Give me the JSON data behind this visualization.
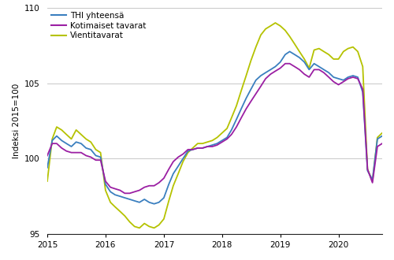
{
  "title": "",
  "ylabel": "Indeksi 2015=100",
  "ylim": [
    95,
    110
  ],
  "yticks": [
    95,
    100,
    105,
    110
  ],
  "colors": {
    "thi": "#3a7fbf",
    "kotimaiset": "#9b1fa3",
    "vientitavarat": "#b5c200"
  },
  "legend_labels": [
    "THI yhteensä",
    "Kotimaiset tavarat",
    "Vientitavarat"
  ],
  "thi": [
    99.4,
    101.2,
    101.5,
    101.2,
    101.0,
    100.8,
    101.1,
    101.0,
    100.7,
    100.6,
    100.2,
    100.1,
    98.3,
    97.8,
    97.6,
    97.5,
    97.4,
    97.3,
    97.2,
    97.1,
    97.3,
    97.1,
    97.0,
    97.1,
    97.4,
    98.3,
    99.0,
    99.5,
    100.0,
    100.5,
    100.6,
    100.7,
    100.7,
    100.8,
    100.9,
    101.0,
    101.2,
    101.4,
    101.9,
    102.6,
    103.3,
    104.0,
    104.6,
    105.2,
    105.5,
    105.7,
    105.9,
    106.1,
    106.4,
    106.9,
    107.1,
    106.9,
    106.7,
    106.4,
    105.9,
    106.3,
    106.1,
    105.9,
    105.7,
    105.4,
    105.3,
    105.2,
    105.4,
    105.5,
    105.4,
    104.4,
    99.2,
    98.6,
    101.3,
    101.5,
    101.7
  ],
  "kotimaiset": [
    100.2,
    101.0,
    101.0,
    100.7,
    100.5,
    100.4,
    100.4,
    100.4,
    100.2,
    100.1,
    99.9,
    99.9,
    98.5,
    98.1,
    98.0,
    97.9,
    97.7,
    97.7,
    97.8,
    97.9,
    98.1,
    98.2,
    98.2,
    98.4,
    98.7,
    99.3,
    99.8,
    100.1,
    100.3,
    100.6,
    100.6,
    100.7,
    100.7,
    100.8,
    100.8,
    100.9,
    101.1,
    101.3,
    101.6,
    102.1,
    102.7,
    103.3,
    103.8,
    104.3,
    104.8,
    105.3,
    105.6,
    105.8,
    106.0,
    106.3,
    106.3,
    106.1,
    105.9,
    105.6,
    105.4,
    105.9,
    105.9,
    105.7,
    105.4,
    105.1,
    104.9,
    105.1,
    105.3,
    105.4,
    105.3,
    104.6,
    99.3,
    98.4,
    100.8,
    101.0,
    101.3
  ],
  "vientitavarat": [
    98.5,
    101.3,
    102.1,
    101.9,
    101.6,
    101.3,
    101.9,
    101.6,
    101.3,
    101.1,
    100.6,
    100.4,
    97.9,
    97.1,
    96.8,
    96.5,
    96.2,
    95.8,
    95.5,
    95.4,
    95.7,
    95.5,
    95.4,
    95.6,
    96.0,
    97.2,
    98.2,
    99.0,
    99.8,
    100.4,
    100.7,
    101.0,
    101.0,
    101.1,
    101.2,
    101.4,
    101.7,
    102.0,
    102.7,
    103.5,
    104.5,
    105.5,
    106.5,
    107.4,
    108.2,
    108.6,
    108.8,
    109.0,
    108.8,
    108.5,
    108.1,
    107.6,
    107.1,
    106.6,
    106.0,
    107.2,
    107.3,
    107.1,
    106.9,
    106.6,
    106.6,
    107.1,
    107.3,
    107.4,
    107.1,
    106.1,
    99.3,
    98.5,
    101.4,
    101.7,
    101.9
  ],
  "n_months": 71
}
